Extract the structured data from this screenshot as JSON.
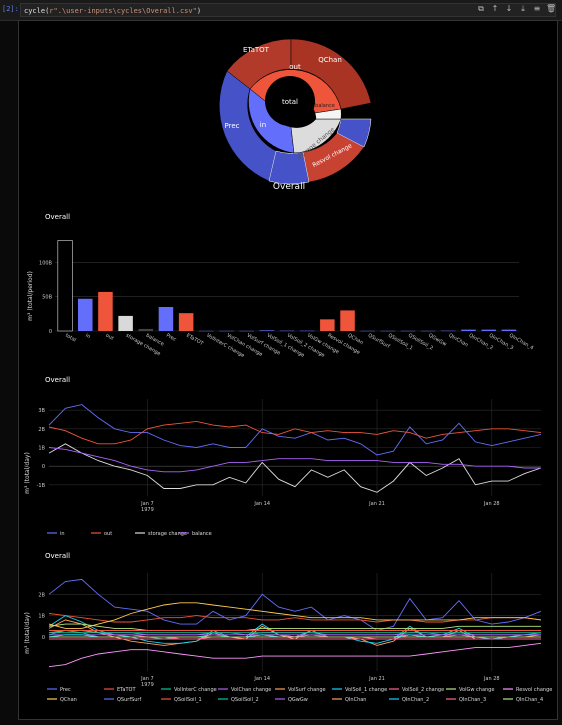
{
  "cell": {
    "prompt": "[2]:",
    "code_fn": "cycle(",
    "code_str": "r\".\\user-inputs\\cycles\\Overall.csv\"",
    "code_end": ")",
    "toolbar_icons": [
      "copy-icon",
      "arrow-up-icon",
      "arrow-down-icon",
      "download-icon",
      "format-icon",
      "trash-icon"
    ]
  },
  "sunburst": {
    "title": "Overall",
    "center": "total",
    "inner": [
      "out",
      "in",
      "storage change",
      "balance"
    ],
    "outer": [
      "ETaTOT",
      "QChan",
      "Prec",
      "Resvol change"
    ]
  },
  "bar_chart": {
    "title": "Overall",
    "ylabel": "m³ (total/period)",
    "yticks": [
      "100B",
      "50B",
      "0"
    ],
    "chart_data": {
      "type": "bar",
      "ylim": [
        0,
        140
      ],
      "categories": [
        "total",
        "in",
        "out",
        "storage change",
        "balance",
        "Prec",
        "ETaTOT",
        "VolInterC change",
        "VolChan change",
        "VolSurf change",
        "VolSoil_1 change",
        "VolSoil_2 change",
        "VolGw change",
        "Resvol change",
        "QChan",
        "QSurfSurf",
        "QSoilSoil_1",
        "QSoilSoil_2",
        "QGwGw",
        "QInChan",
        "QInChan_2",
        "QInChan_3",
        "QInChan_4"
      ],
      "values": [
        132,
        47,
        57,
        22,
        3,
        35,
        26,
        0.3,
        0.3,
        0.3,
        1,
        0.5,
        0.5,
        17,
        30,
        0.3,
        0.3,
        0.3,
        0.3,
        0.5,
        2,
        2,
        2
      ],
      "colors": [
        "#000000",
        "#636efa",
        "#ef553b",
        "#d9d9d9",
        "#444444",
        "#636efa",
        "#ef553b",
        "#636efa",
        "#636efa",
        "#636efa",
        "#636efa",
        "#636efa",
        "#636efa",
        "#ef553b",
        "#ef553b",
        "#636efa",
        "#636efa",
        "#636efa",
        "#636efa",
        "#636efa",
        "#636efa",
        "#636efa",
        "#636efa"
      ]
    }
  },
  "line_chart_1": {
    "title": "Overall",
    "ylabel": "m³ (total/day)",
    "yticks": [
      "3B",
      "2B",
      "1B",
      "0",
      "-1B"
    ],
    "xticks": [
      "Jan 7\n1979",
      "Jan 14",
      "Jan 21",
      "Jan 28"
    ],
    "chart_data": {
      "type": "line",
      "x_days": [
        1,
        2,
        3,
        4,
        5,
        6,
        7,
        8,
        9,
        10,
        11,
        12,
        13,
        14,
        15,
        16,
        17,
        18,
        19,
        20,
        21,
        22,
        23,
        24,
        25,
        26,
        27,
        28,
        29,
        30,
        31
      ],
      "ylim": [
        -1.6,
        3.6
      ],
      "series": [
        {
          "name": "in",
          "color": "#636efa",
          "values": [
            2.2,
            3.1,
            3.3,
            2.6,
            2.0,
            1.8,
            1.8,
            1.4,
            1.1,
            1.0,
            1.2,
            1.0,
            1.0,
            2.0,
            1.6,
            1.5,
            1.8,
            1.4,
            1.5,
            1.2,
            0.6,
            0.8,
            2.1,
            1.2,
            1.4,
            2.3,
            1.3,
            1.1,
            1.3,
            1.5,
            1.7
          ]
        },
        {
          "name": "out",
          "color": "#ef553b",
          "values": [
            2.1,
            1.9,
            1.5,
            1.2,
            1.2,
            1.4,
            2.0,
            2.2,
            2.3,
            2.4,
            2.2,
            2.1,
            2.2,
            1.8,
            1.7,
            2.0,
            1.8,
            1.9,
            1.8,
            1.8,
            1.7,
            1.9,
            1.8,
            1.5,
            1.7,
            1.8,
            1.9,
            2.0,
            2.0,
            1.9,
            1.8
          ]
        },
        {
          "name": "storage change",
          "color": "#dddddd",
          "values": [
            0.7,
            1.2,
            0.7,
            0.3,
            0.0,
            -0.2,
            -0.5,
            -1.2,
            -1.2,
            -1.0,
            -1.0,
            -0.6,
            -0.9,
            0.2,
            -0.7,
            -1.1,
            -0.2,
            -0.6,
            -0.2,
            -1.1,
            -1.4,
            -0.8,
            0.2,
            -0.5,
            -0.1,
            0.4,
            -1.0,
            -0.8,
            -0.8,
            -0.4,
            -0.1
          ]
        },
        {
          "name": "balance",
          "color": "#ab63fa",
          "values": [
            1.0,
            0.9,
            0.7,
            0.5,
            0.3,
            0.0,
            -0.2,
            -0.3,
            -0.3,
            -0.2,
            0.0,
            0.2,
            0.2,
            0.3,
            0.4,
            0.4,
            0.4,
            0.3,
            0.3,
            0.3,
            0.3,
            0.2,
            0.2,
            0.2,
            0.1,
            0.1,
            0.0,
            0.0,
            0.0,
            -0.1,
            -0.1
          ]
        }
      ]
    }
  },
  "line_chart_2": {
    "title": "Overall",
    "ylabel": "m³ (total/day)",
    "yticks": [
      "2B",
      "1B",
      "0"
    ],
    "xticks": [
      "Jan 7\n1979",
      "Jan 14",
      "Jan 21",
      "Jan 28"
    ],
    "chart_data": {
      "type": "line",
      "x_days": [
        1,
        2,
        3,
        4,
        5,
        6,
        7,
        8,
        9,
        10,
        11,
        12,
        13,
        14,
        15,
        16,
        17,
        18,
        19,
        20,
        21,
        22,
        23,
        24,
        25,
        26,
        27,
        28,
        29,
        30,
        31
      ],
      "ylim": [
        -1.6,
        3.0
      ],
      "series": [
        {
          "name": "Prec",
          "color": "#636efa",
          "values": [
            2.0,
            2.6,
            2.7,
            2.0,
            1.4,
            1.3,
            1.2,
            0.8,
            0.6,
            0.6,
            1.2,
            0.8,
            1.0,
            2.0,
            1.4,
            1.2,
            1.4,
            0.8,
            1.0,
            0.8,
            0.3,
            0.5,
            1.8,
            0.8,
            0.9,
            1.7,
            0.8,
            0.6,
            0.7,
            0.9,
            1.2
          ]
        },
        {
          "name": "ETaTOT",
          "color": "#ef553b",
          "values": [
            1.1,
            1.0,
            0.9,
            0.8,
            0.7,
            0.7,
            0.8,
            0.9,
            0.9,
            1.0,
            0.9,
            0.9,
            0.9,
            0.8,
            0.8,
            0.9,
            0.8,
            0.8,
            0.8,
            0.8,
            0.7,
            0.8,
            0.8,
            0.7,
            0.7,
            0.8,
            0.8,
            0.9,
            0.9,
            0.9,
            0.8
          ]
        },
        {
          "name": "VolInterC change",
          "color": "#00cc96",
          "values": [
            0.1,
            0.3,
            0.2,
            0.0,
            0.0,
            0.0,
            0.0,
            -0.1,
            0.0,
            0.0,
            0.1,
            0.0,
            0.0,
            0.1,
            0.0,
            0.0,
            0.1,
            0.0,
            0.0,
            0.0,
            0.0,
            0.0,
            0.1,
            0.0,
            0.0,
            0.1,
            0.0,
            0.0,
            0.0,
            0.0,
            0.0
          ]
        },
        {
          "name": "VolChan change",
          "color": "#ab63fa",
          "values": [
            0.3,
            0.3,
            0.3,
            0.2,
            0.2,
            0.2,
            0.1,
            0.1,
            0.1,
            0.1,
            0.2,
            0.2,
            0.1,
            0.2,
            0.2,
            0.2,
            0.2,
            0.1,
            0.1,
            0.1,
            0.1,
            0.1,
            0.2,
            0.2,
            0.1,
            0.2,
            0.1,
            0.1,
            0.1,
            0.1,
            0.1
          ]
        },
        {
          "name": "VolSurf change",
          "color": "#ffa15a",
          "values": [
            0.4,
            0.8,
            0.6,
            0.2,
            0.0,
            -0.2,
            -0.3,
            -0.4,
            -0.3,
            -0.2,
            0.2,
            0.0,
            -0.1,
            0.5,
            0.1,
            -0.1,
            0.3,
            0.0,
            0.0,
            -0.1,
            -0.4,
            -0.2,
            0.4,
            0.0,
            0.0,
            0.3,
            -0.1,
            -0.1,
            0.0,
            0.0,
            0.1
          ]
        },
        {
          "name": "VolSoil_1 change",
          "color": "#19d3f3",
          "values": [
            0.5,
            1.0,
            0.7,
            0.3,
            0.1,
            0.0,
            -0.2,
            -0.3,
            -0.3,
            -0.2,
            0.3,
            0.0,
            0.0,
            0.6,
            0.1,
            0.0,
            0.3,
            0.0,
            0.0,
            -0.2,
            -0.3,
            -0.1,
            0.5,
            0.0,
            0.1,
            0.4,
            0.0,
            -0.1,
            0.0,
            0.1,
            0.2
          ]
        },
        {
          "name": "VolSoil_2 change",
          "color": "#ff6692",
          "values": [
            0.2,
            0.3,
            0.3,
            0.2,
            0.1,
            0.1,
            0.0,
            0.0,
            -0.1,
            -0.1,
            0.0,
            0.0,
            0.0,
            0.1,
            0.1,
            0.0,
            0.1,
            0.0,
            0.0,
            0.0,
            -0.1,
            -0.1,
            0.1,
            0.0,
            0.0,
            0.1,
            0.0,
            0.0,
            0.0,
            0.0,
            0.0
          ]
        },
        {
          "name": "VolGw change",
          "color": "#b6e880",
          "values": [
            0.5,
            0.6,
            0.6,
            0.5,
            0.4,
            0.4,
            0.3,
            0.3,
            0.3,
            0.3,
            0.3,
            0.3,
            0.3,
            0.4,
            0.4,
            0.4,
            0.4,
            0.4,
            0.4,
            0.4,
            0.4,
            0.4,
            0.4,
            0.4,
            0.4,
            0.5,
            0.5,
            0.5,
            0.5,
            0.5,
            0.5
          ]
        },
        {
          "name": "Resvol change",
          "color": "#ff97ff",
          "values": [
            -1.4,
            -1.3,
            -1.0,
            -0.8,
            -0.7,
            -0.6,
            -0.6,
            -0.7,
            -0.8,
            -0.9,
            -1.0,
            -1.0,
            -1.0,
            -0.9,
            -0.9,
            -0.9,
            -0.9,
            -0.9,
            -0.9,
            -0.9,
            -0.9,
            -0.9,
            -0.9,
            -0.8,
            -0.7,
            -0.6,
            -0.5,
            -0.5,
            -0.5,
            -0.4,
            -0.3
          ]
        },
        {
          "name": "QChan",
          "color": "#fecb52",
          "values": [
            0.6,
            0.4,
            0.4,
            0.6,
            0.8,
            1.1,
            1.3,
            1.5,
            1.6,
            1.6,
            1.5,
            1.4,
            1.3,
            1.2,
            1.1,
            1.0,
            0.9,
            0.9,
            0.9,
            0.9,
            0.8,
            0.8,
            0.8,
            0.8,
            0.8,
            0.8,
            0.9,
            0.9,
            0.9,
            0.9,
            0.8
          ]
        },
        {
          "name": "QSurfSurf",
          "color": "#636efa",
          "values": [
            0.0,
            0.1,
            0.1,
            0.0,
            0.0,
            0.0,
            0.0,
            0.0,
            0.0,
            0.0,
            0.0,
            0.0,
            0.0,
            0.1,
            0.0,
            0.0,
            0.0,
            0.0,
            0.0,
            0.0,
            0.0,
            0.0,
            0.1,
            0.0,
            0.0,
            0.0,
            0.0,
            0.0,
            0.0,
            0.0,
            0.0
          ]
        },
        {
          "name": "QSoilSoil_1",
          "color": "#ef553b",
          "values": [
            0.3,
            0.3,
            0.3,
            0.3,
            0.3,
            0.3,
            0.3,
            0.3,
            0.3,
            0.3,
            0.3,
            0.3,
            0.3,
            0.3,
            0.3,
            0.3,
            0.3,
            0.3,
            0.3,
            0.3,
            0.3,
            0.3,
            0.3,
            0.3,
            0.3,
            0.3,
            0.3,
            0.3,
            0.3,
            0.3,
            0.3
          ]
        },
        {
          "name": "QSoilSoil_2",
          "color": "#00cc96",
          "values": [
            0.2,
            0.2,
            0.2,
            0.2,
            0.2,
            0.2,
            0.2,
            0.2,
            0.2,
            0.2,
            0.2,
            0.2,
            0.2,
            0.2,
            0.2,
            0.2,
            0.2,
            0.2,
            0.2,
            0.2,
            0.2,
            0.2,
            0.2,
            0.2,
            0.2,
            0.2,
            0.2,
            0.2,
            0.2,
            0.2,
            0.2
          ]
        },
        {
          "name": "QGwGw",
          "color": "#ab63fa",
          "values": [
            0.1,
            0.1,
            0.1,
            0.1,
            0.1,
            0.1,
            0.1,
            0.1,
            0.1,
            0.1,
            0.1,
            0.1,
            0.1,
            0.1,
            0.1,
            0.1,
            0.1,
            0.1,
            0.1,
            0.1,
            0.1,
            0.1,
            0.1,
            0.1,
            0.1,
            0.1,
            0.1,
            0.1,
            0.1,
            0.1,
            0.1
          ]
        },
        {
          "name": "QInChan",
          "color": "#ffa15a",
          "values": [
            0.0,
            0.0,
            0.0,
            0.0,
            0.0,
            0.0,
            0.0,
            0.0,
            0.0,
            0.0,
            0.0,
            0.0,
            0.0,
            0.0,
            0.0,
            0.0,
            0.0,
            0.0,
            0.0,
            0.0,
            0.0,
            0.0,
            0.0,
            0.0,
            0.0,
            0.0,
            0.0,
            0.0,
            0.0,
            0.0,
            0.0
          ]
        },
        {
          "name": "QInChan_2",
          "color": "#19d3f3",
          "values": [
            0.0,
            0.1,
            0.1,
            0.0,
            0.0,
            0.0,
            0.0,
            0.0,
            0.0,
            0.0,
            0.0,
            0.0,
            0.0,
            0.1,
            0.0,
            0.0,
            0.0,
            0.0,
            0.0,
            0.0,
            0.0,
            0.0,
            0.1,
            0.0,
            0.0,
            0.0,
            0.0,
            0.0,
            0.0,
            0.0,
            0.0
          ]
        },
        {
          "name": "QInChan_3",
          "color": "#ff6692",
          "values": [
            -0.1,
            -0.1,
            -0.1,
            -0.1,
            -0.1,
            -0.1,
            -0.1,
            -0.1,
            -0.1,
            -0.1,
            -0.1,
            -0.1,
            -0.1,
            -0.1,
            -0.1,
            -0.1,
            -0.1,
            -0.1,
            -0.1,
            -0.1,
            -0.1,
            -0.1,
            -0.1,
            -0.1,
            -0.1,
            -0.1,
            -0.1,
            -0.1,
            -0.1,
            -0.1,
            -0.1
          ]
        },
        {
          "name": "QInChan_4",
          "color": "#b6e880",
          "values": [
            0.0,
            0.0,
            0.0,
            0.0,
            0.0,
            0.0,
            0.0,
            0.0,
            0.0,
            0.0,
            0.0,
            0.0,
            0.0,
            0.0,
            0.0,
            0.0,
            0.0,
            0.0,
            0.0,
            0.0,
            0.0,
            0.0,
            0.0,
            0.0,
            0.0,
            0.0,
            0.0,
            0.0,
            0.0,
            0.0,
            0.0
          ]
        }
      ]
    }
  }
}
